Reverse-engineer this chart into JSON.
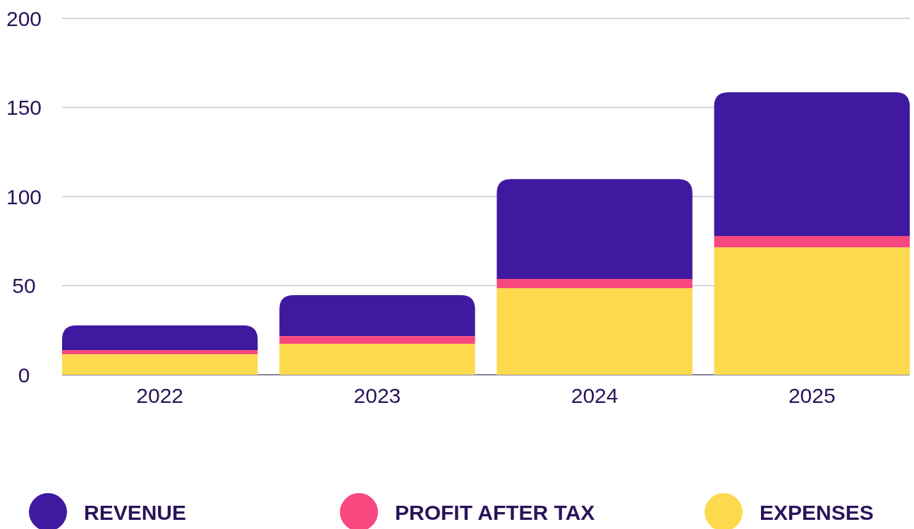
{
  "chart_data": {
    "type": "bar",
    "stacked": true,
    "categories": [
      "2022",
      "2023",
      "2024",
      "2025"
    ],
    "series": [
      {
        "name": "EXPENSES",
        "color": "#fdd94e",
        "values": [
          11.5,
          17.4,
          48.6,
          71.5
        ]
      },
      {
        "name": "PROFIT AFTER TAX",
        "color": "#f7487f",
        "values": [
          2.3,
          4.3,
          5.2,
          6.4
        ]
      },
      {
        "name": "REVENUE",
        "color": "#3f19a0",
        "values": [
          13.9,
          23,
          56,
          80.6
        ]
      }
    ],
    "ylim": [
      0,
      200
    ],
    "yticks": [
      0,
      50,
      100,
      150,
      200
    ],
    "grid": "y",
    "legend": "bottom"
  }
}
